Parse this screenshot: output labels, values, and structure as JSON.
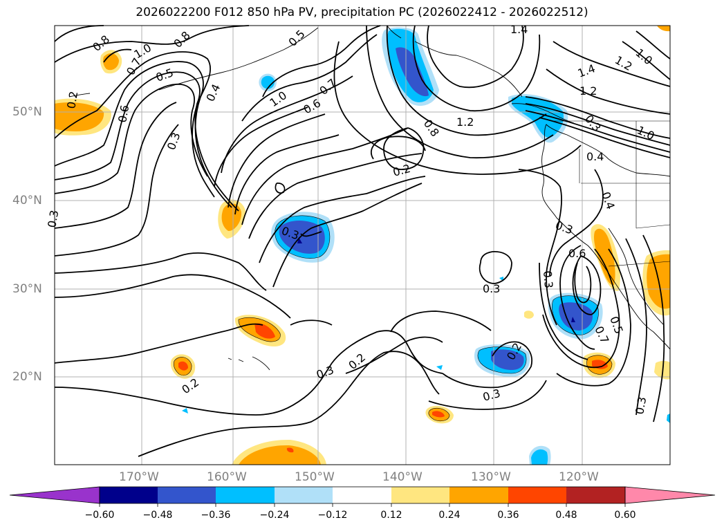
{
  "title": "2026022200 F012 850 hPa PV, precipitation PC (2026022412 - 2026022512)",
  "axes": {
    "lat_labels": [
      "50°N",
      "40°N",
      "30°N",
      "20°N"
    ],
    "lon_labels": [
      "170°W",
      "160°W",
      "150°W",
      "140°W",
      "130°W",
      "120°W"
    ]
  },
  "contour_labels": [
    "0.8",
    "1.0",
    "0.7",
    "0.5",
    "0.8",
    "0.5",
    "0.6",
    "0.4",
    "0.2",
    "1.0",
    "0.3",
    "0.6",
    "0.7",
    "0.8",
    "1.2",
    "1.4",
    "1.4",
    "1.2",
    "1.0",
    "1.2",
    "0.3",
    "1.0",
    "0.4",
    "0.2",
    "0.4",
    "0.3",
    "0.6",
    "0.3",
    "0.3",
    "0.7",
    "0.5",
    "0.3",
    "0.2",
    "0.3",
    "0.2",
    "0.3",
    "0.2",
    "0.3",
    "0.3"
  ],
  "colorbar": {
    "colors": [
      "#9933cc",
      "#00008b",
      "#3355cc",
      "#00bfff",
      "#b0e0f8",
      "#ffffff",
      "#ffe680",
      "#ffa500",
      "#ff4500",
      "#b22222",
      "#ff88aa"
    ],
    "labels": [
      "−0.60",
      "−0.48",
      "−0.36",
      "−0.24",
      "−0.12",
      "0.12",
      "0.24",
      "0.36",
      "0.48",
      "0.60"
    ]
  },
  "legend_colors": {
    "pos1": "#ffe680",
    "pos2": "#ffa500",
    "pos3": "#ff4500",
    "neg1": "#b0e0f8",
    "neg2": "#00bfff",
    "neg3": "#3355cc",
    "neg4": "#00008b"
  }
}
